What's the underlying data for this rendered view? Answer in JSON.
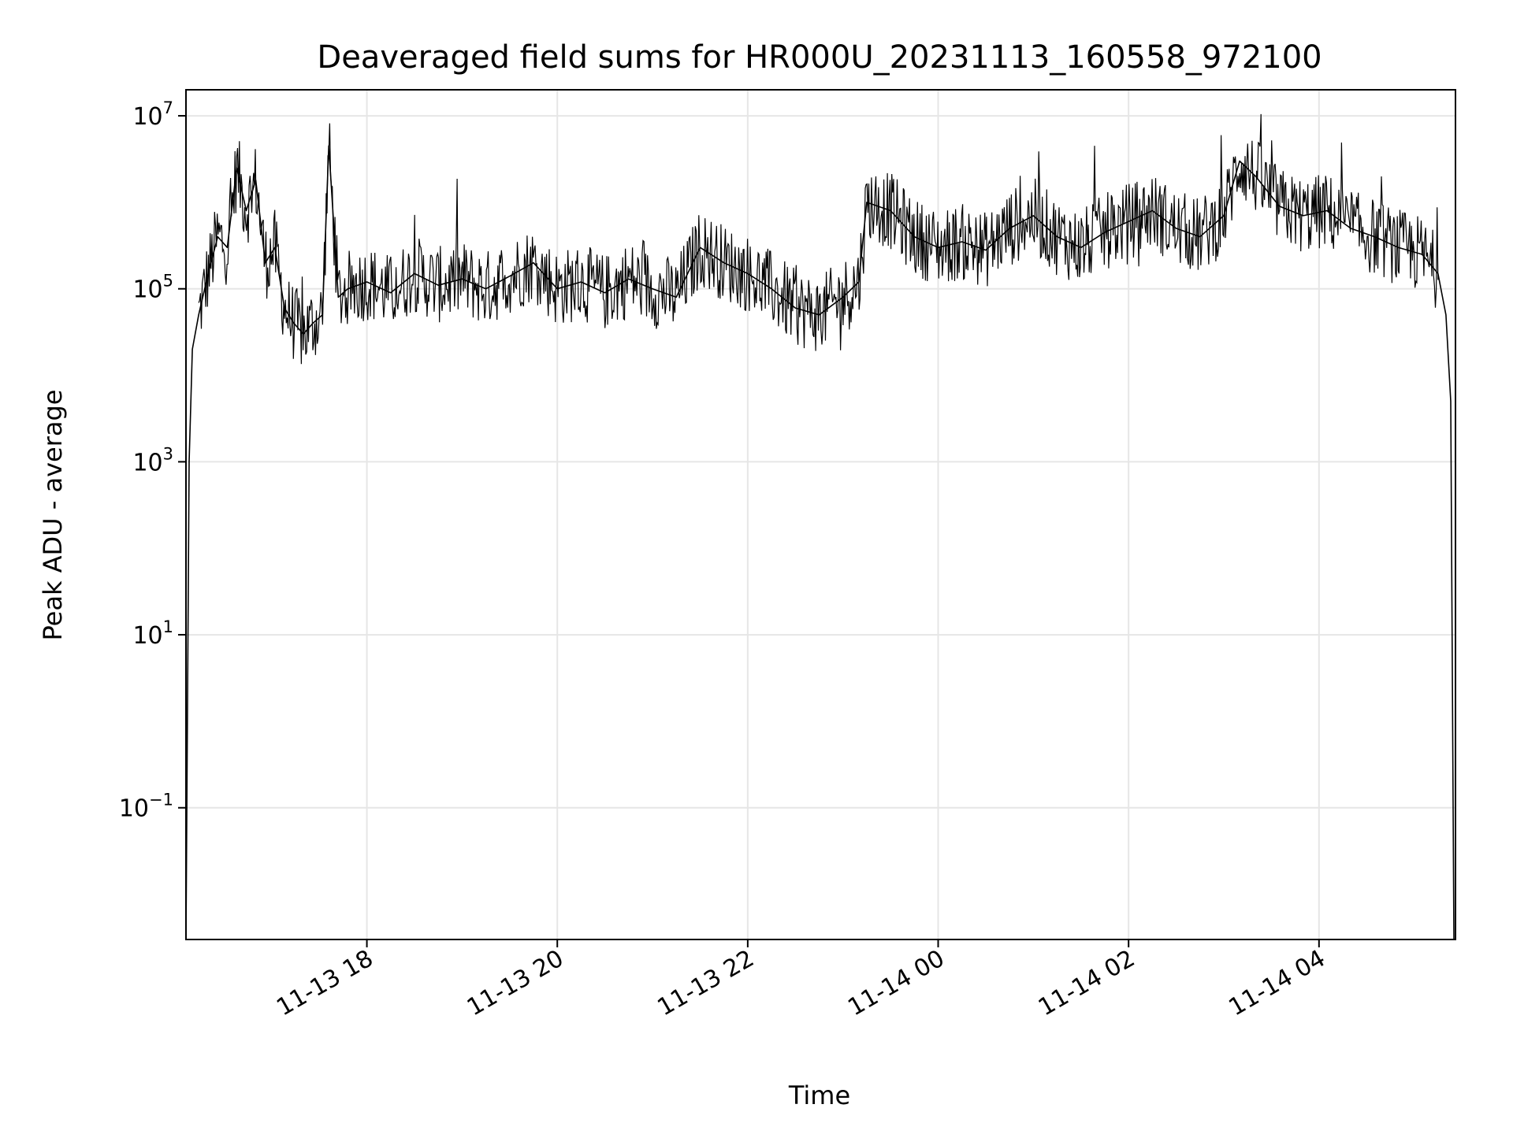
{
  "chart_data": {
    "type": "line",
    "title": "Deaveraged field sums for HR000U_20231113_160558_972100",
    "xlabel": "Time",
    "ylabel": "Peak ADU - average",
    "yscale": "log",
    "ylim": [
      0.003,
      20000000
    ],
    "xlim": [
      "2023-11-13 16:06",
      "2023-11-14 05:26"
    ],
    "grid": true,
    "line_color": "#000000",
    "x_ticks": [
      {
        "value": "2023-11-13 18:00",
        "label": "11-13 18"
      },
      {
        "value": "2023-11-13 20:00",
        "label": "11-13 20"
      },
      {
        "value": "2023-11-13 22:00",
        "label": "11-13 22"
      },
      {
        "value": "2023-11-14 00:00",
        "label": "11-14 00"
      },
      {
        "value": "2023-11-14 02:00",
        "label": "11-14 02"
      },
      {
        "value": "2023-11-14 04:00",
        "label": "11-14 04"
      }
    ],
    "y_ticks": [
      {
        "value": 10000000,
        "base": "10",
        "exp": "7"
      },
      {
        "value": 100000,
        "base": "10",
        "exp": "5"
      },
      {
        "value": 1000,
        "base": "10",
        "exp": "3"
      },
      {
        "value": 10,
        "base": "10",
        "exp": "1"
      },
      {
        "value": 0.1,
        "base": "10",
        "exp": "−1"
      }
    ],
    "series": [
      {
        "x": [
          "2023-11-13 16:06",
          "2023-11-13 16:08",
          "2023-11-13 16:10",
          "2023-11-13 16:14",
          "2023-11-13 16:20",
          "2023-11-13 16:26",
          "2023-11-13 16:32",
          "2023-11-13 16:38",
          "2023-11-13 16:44",
          "2023-11-13 16:50",
          "2023-11-13 16:56",
          "2023-11-13 17:02",
          "2023-11-13 17:08",
          "2023-11-13 17:14",
          "2023-11-13 17:20",
          "2023-11-13 17:26",
          "2023-11-13 17:32",
          "2023-11-13 17:36",
          "2023-11-13 17:42",
          "2023-11-13 17:48",
          "2023-11-13 18:00",
          "2023-11-13 18:15",
          "2023-11-13 18:30",
          "2023-11-13 18:45",
          "2023-11-13 19:00",
          "2023-11-13 19:15",
          "2023-11-13 19:30",
          "2023-11-13 19:45",
          "2023-11-13 20:00",
          "2023-11-13 20:15",
          "2023-11-13 20:30",
          "2023-11-13 20:45",
          "2023-11-13 21:00",
          "2023-11-13 21:15",
          "2023-11-13 21:30",
          "2023-11-13 21:45",
          "2023-11-13 22:00",
          "2023-11-13 22:15",
          "2023-11-13 22:30",
          "2023-11-13 22:45",
          "2023-11-13 23:00",
          "2023-11-13 23:10",
          "2023-11-13 23:15",
          "2023-11-13 23:30",
          "2023-11-13 23:45",
          "2023-11-14 00:00",
          "2023-11-14 00:15",
          "2023-11-14 00:30",
          "2023-11-14 00:45",
          "2023-11-14 01:00",
          "2023-11-14 01:15",
          "2023-11-14 01:30",
          "2023-11-14 01:45",
          "2023-11-14 02:00",
          "2023-11-14 02:15",
          "2023-11-14 02:30",
          "2023-11-14 02:45",
          "2023-11-14 03:00",
          "2023-11-14 03:10",
          "2023-11-14 03:20",
          "2023-11-14 03:35",
          "2023-11-14 03:50",
          "2023-11-14 04:05",
          "2023-11-14 04:20",
          "2023-11-14 04:35",
          "2023-11-14 04:50",
          "2023-11-14 05:05",
          "2023-11-14 05:15",
          "2023-11-14 05:20",
          "2023-11-14 05:23",
          "2023-11-14 05:25"
        ],
        "y": [
          0.003,
          1000,
          20000,
          50000,
          150000,
          400000,
          300000,
          2500000,
          800000,
          1800000,
          200000,
          300000,
          60000,
          40000,
          30000,
          40000,
          50000,
          4500000,
          80000,
          100000,
          120000,
          90000,
          150000,
          110000,
          130000,
          100000,
          140000,
          200000,
          100000,
          120000,
          90000,
          130000,
          100000,
          80000,
          300000,
          200000,
          150000,
          100000,
          60000,
          50000,
          80000,
          120000,
          1000000,
          800000,
          400000,
          300000,
          350000,
          280000,
          500000,
          700000,
          400000,
          300000,
          450000,
          600000,
          800000,
          500000,
          400000,
          700000,
          3000000,
          2000000,
          900000,
          700000,
          800000,
          500000,
          400000,
          300000,
          250000,
          150000,
          50000,
          5000,
          0.003
        ]
      }
    ]
  }
}
